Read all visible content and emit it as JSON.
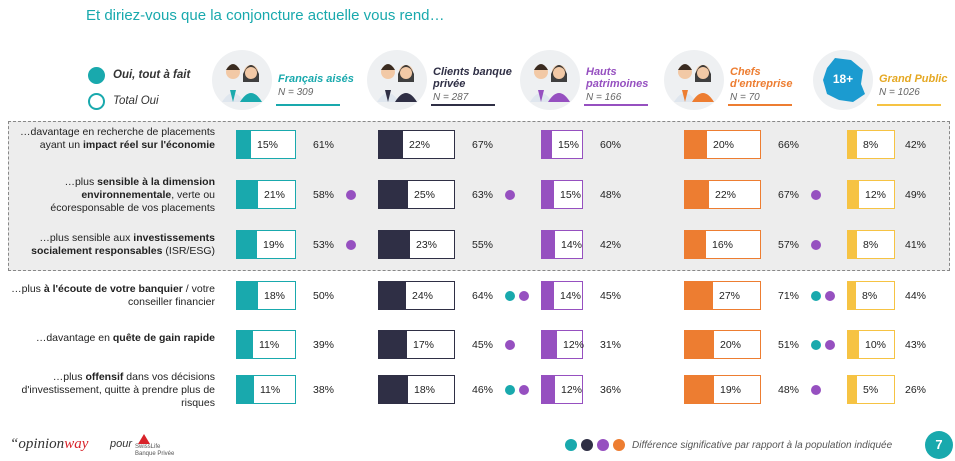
{
  "title": "Et diriez-vous que la conjoncture actuelle vous rend…",
  "legend": {
    "tout_a_fait": "Oui, tout à fait",
    "total_oui": "Total Oui"
  },
  "colors": {
    "teal": "#19a9ad",
    "navy": "#2f2f45",
    "purple": "#9650c0",
    "orange": "#ed7d31",
    "yellow": "#f6c343"
  },
  "groups": [
    {
      "label_lines": [
        "Français aisés"
      ],
      "n": "N = 309",
      "color": "#19a9ad"
    },
    {
      "label_lines": [
        "Clients banque",
        "privée"
      ],
      "n": "N = 287",
      "color": "#2f2f45"
    },
    {
      "label_lines": [
        "Hauts",
        "patrimoines"
      ],
      "n": "N = 166",
      "color": "#9650c0"
    },
    {
      "label_lines": [
        "Chefs",
        "d'entreprise"
      ],
      "n": "N = 70",
      "color": "#ed7d31"
    },
    {
      "label_lines": [
        "Grand Public"
      ],
      "n": "N = 1026",
      "color": "#f6c343"
    }
  ],
  "map_badge": "18+",
  "rows": [
    {
      "label_html": "…davantage en recherche de placements ayant un <b>impact réel sur l'économie</b>"
    },
    {
      "label_html": "…plus <b>sensible à la dimension environnementale</b>, verte ou écoresponsable de vos placements"
    },
    {
      "label_html": "…plus sensible aux <b>investissements socialement responsables</b> (ISR/ESG)"
    },
    {
      "label_html": "…plus <b>à l'écoute de votre banquier</b> / votre conseiller financier"
    },
    {
      "label_html": "…davantage en <b>quête de gain rapide</b>"
    },
    {
      "label_html": "…plus <b>offensif</b> dans vos décisions d'investissement, quitte à prendre plus de risques"
    }
  ],
  "chart_data": {
    "type": "bar",
    "title": "Et diriez-vous que la conjoncture actuelle vous rend…",
    "categories": [
      "…davantage en recherche de placements ayant un impact réel sur l'économie",
      "…plus sensible à la dimension environnementale, verte ou écoresponsable de vos placements",
      "…plus sensible aux investissements socialement responsables (ISR/ESG)",
      "…plus à l'écoute de votre banquier / votre conseiller financier",
      "…davantage en quête de gain rapide",
      "…plus offensif dans vos décisions d'investissement, quitte à prendre plus de risques"
    ],
    "series": [
      {
        "name": "Français aisés",
        "tout_a_fait": [
          15,
          21,
          19,
          18,
          11,
          11
        ],
        "total_oui": [
          61,
          58,
          53,
          50,
          39,
          38
        ],
        "sig": [
          [],
          [
            "#9650c0"
          ],
          [
            "#9650c0"
          ],
          [],
          [],
          []
        ]
      },
      {
        "name": "Clients banque privée",
        "tout_a_fait": [
          22,
          25,
          23,
          24,
          17,
          18
        ],
        "total_oui": [
          67,
          63,
          55,
          64,
          45,
          46
        ],
        "sig": [
          [],
          [
            "#9650c0"
          ],
          [],
          [
            "#19a9ad",
            "#9650c0"
          ],
          [
            "#9650c0"
          ],
          [
            "#19a9ad",
            "#9650c0"
          ]
        ]
      },
      {
        "name": "Hauts patrimoines",
        "tout_a_fait": [
          15,
          15,
          14,
          14,
          12,
          12
        ],
        "total_oui": [
          60,
          48,
          42,
          45,
          31,
          36
        ],
        "sig": [
          [],
          [],
          [],
          [],
          [],
          []
        ]
      },
      {
        "name": "Chefs d'entreprise",
        "tout_a_fait": [
          20,
          22,
          16,
          27,
          20,
          19
        ],
        "total_oui": [
          66,
          67,
          57,
          71,
          51,
          48
        ],
        "sig": [
          [],
          [
            "#9650c0"
          ],
          [
            "#9650c0"
          ],
          [
            "#19a9ad",
            "#9650c0"
          ],
          [
            "#19a9ad",
            "#9650c0"
          ],
          [
            "#9650c0"
          ]
        ]
      },
      {
        "name": "Grand Public",
        "tout_a_fait": [
          8,
          12,
          8,
          8,
          10,
          5
        ],
        "total_oui": [
          42,
          49,
          41,
          44,
          43,
          26
        ],
        "sig": [
          [],
          [],
          [],
          [],
          [],
          []
        ]
      }
    ],
    "ylim": [
      0,
      100
    ]
  },
  "footer": {
    "logo_prefix": "“opinion",
    "logo_suffix": "way",
    "pour": "pour",
    "swiss_line1": "SwissLife",
    "swiss_line2": "Banque Privée",
    "dots": [
      "#19a9ad",
      "#2f2f45",
      "#9650c0",
      "#ed7d31"
    ],
    "note": "Différence significative par rapport à la population indiquée",
    "page": "7"
  }
}
